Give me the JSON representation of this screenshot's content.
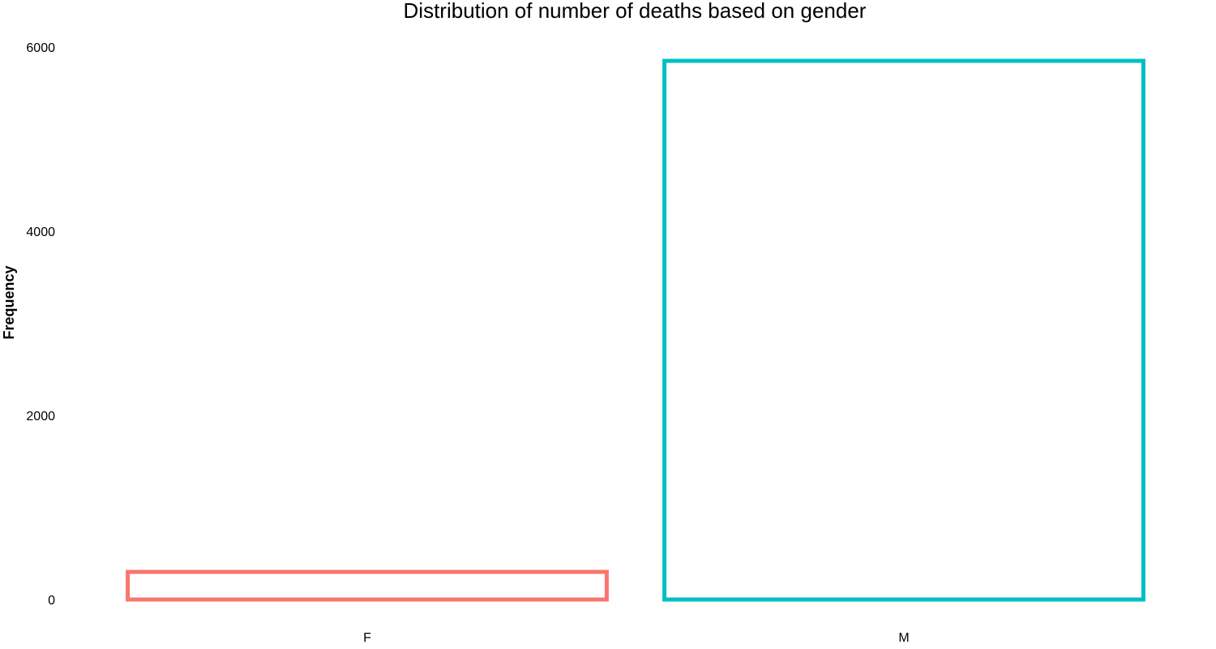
{
  "chart_data": {
    "type": "bar",
    "title": "Distribution of number of deaths based on gender",
    "xlabel": "",
    "ylabel": "Frequency",
    "categories": [
      "F",
      "M"
    ],
    "values": [
      300,
      5850
    ],
    "colors": [
      "#F8766D",
      "#00BFC4"
    ],
    "bar_style": "outline",
    "ylim": [
      0,
      6000
    ],
    "yticks": [
      0,
      2000,
      4000,
      6000
    ],
    "ytick_labels": [
      "0",
      "2000",
      "4000",
      "6000"
    ],
    "grid": false,
    "legend": "none"
  }
}
